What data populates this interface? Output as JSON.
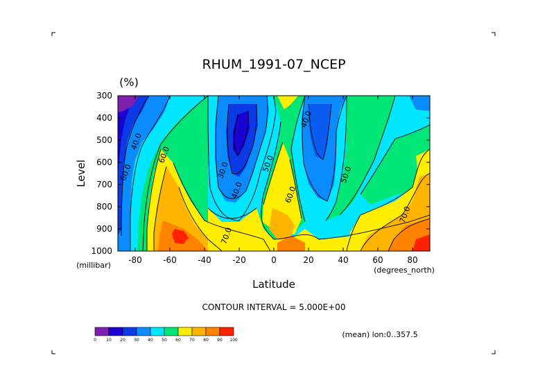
{
  "chart_data": {
    "type": "contour",
    "title": "RHUM_1991-07_NCEP",
    "units": "(%)",
    "xlabel": "Latitude",
    "ylabel": "Level",
    "x_units": "(degrees_north)",
    "y_units": "(millibar)",
    "xlim": [
      -90,
      90
    ],
    "ylim": [
      1000,
      300
    ],
    "x_ticks": [
      -80,
      -60,
      -40,
      -20,
      0,
      20,
      40,
      60,
      80
    ],
    "x_tick_labels": [
      "-80",
      "-60",
      "-40",
      "-20",
      "0",
      "20",
      "40",
      "60",
      "80"
    ],
    "y_ticks": [
      300,
      400,
      500,
      600,
      700,
      800,
      900,
      1000
    ],
    "y_tick_labels": [
      "300",
      "400",
      "500",
      "600",
      "700",
      "800",
      "900",
      "1000"
    ],
    "contour_interval_text": "CONTOUR INTERVAL = 5.000E+00",
    "footnote": "(mean) lon:0..357.5",
    "colorbar_ticks": [
      "0",
      "10",
      "20",
      "30",
      "40",
      "50",
      "60",
      "70",
      "80",
      "90",
      "100"
    ],
    "colorbar_colors": [
      "#7f1fb0",
      "#1a00d2",
      "#0a3be6",
      "#0a8cff",
      "#00e6ff",
      "#00e676",
      "#ffee00",
      "#ffb400",
      "#ff8200",
      "#ff2200"
    ],
    "contour_labels": [
      {
        "text": "40.0",
        "lat": -78,
        "lev": 510
      },
      {
        "text": "60.0",
        "lat": -62,
        "lev": 570
      },
      {
        "text": "60.0",
        "lat": -84,
        "lev": 650
      },
      {
        "text": "70.0",
        "lat": -26,
        "lev": 935
      },
      {
        "text": "40.0",
        "lat": -20,
        "lev": 730
      },
      {
        "text": "30.0",
        "lat": -28,
        "lev": 640
      },
      {
        "text": "50.0",
        "lat": -2,
        "lev": 610
      },
      {
        "text": "60.0",
        "lat": 11,
        "lev": 750
      },
      {
        "text": "40.0",
        "lat": 20,
        "lev": 410
      },
      {
        "text": "50.0",
        "lat": 43,
        "lev": 660
      },
      {
        "text": "70.0",
        "lat": 77,
        "lev": 840
      }
    ]
  }
}
